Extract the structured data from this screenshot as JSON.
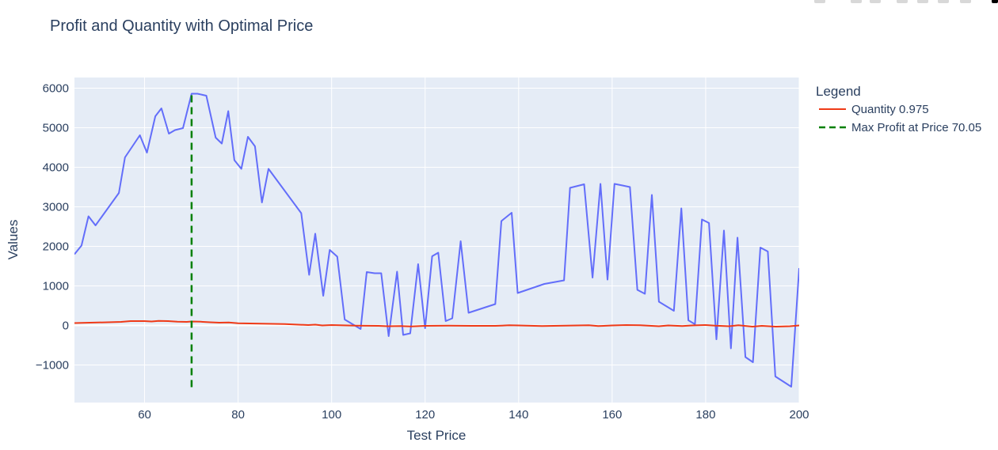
{
  "chart_data": {
    "type": "line",
    "title": "Profit and Quantity with Optimal Price",
    "xlabel": "Test Price",
    "ylabel": "Values",
    "xlim": [
      45,
      200
    ],
    "ylim": [
      -1950,
      6270
    ],
    "x_ticks": [
      60,
      80,
      100,
      120,
      140,
      160,
      180,
      200
    ],
    "y_ticks": [
      -1000,
      0,
      1000,
      2000,
      3000,
      4000,
      5000,
      6000
    ],
    "y_tick_labels": [
      "−1000",
      "0",
      "1000",
      "2000",
      "3000",
      "4000",
      "5000",
      "6000"
    ],
    "grid": true,
    "legend": {
      "title": "Legend",
      "position": "top-right, outside plot",
      "entries": [
        "Quantity 0.975",
        "Max Profit at Price 70.05"
      ]
    },
    "colors": {
      "plot_background": "#e5ecf6",
      "grid": "#ffffff",
      "profit": "#636efa",
      "quantity": "#ef3a17",
      "max_profit": "#008000",
      "text": "#2a3f5f"
    },
    "series": [
      {
        "key": "profit",
        "x": [
          45,
          46.5,
          48,
          49.5,
          54.5,
          55.8,
          59,
          60.5,
          62.3,
          63.6,
          65.2,
          66.5,
          68.2,
          70.05,
          71.3,
          73.2,
          75.2,
          76.5,
          77.9,
          79.2,
          80.7,
          82.1,
          83.6,
          85.1,
          86.5,
          93.5,
          95.2,
          96.5,
          98.2,
          99.6,
          101.2,
          102.8,
          106.2,
          107.5,
          109.2,
          110.6,
          112.2,
          114,
          115.3,
          116.8,
          118.5,
          120,
          121.5,
          122.8,
          124.4,
          125.8,
          127.6,
          129.3,
          135,
          136.3,
          138.5,
          139.8,
          145.5,
          149.7,
          151,
          154,
          155.8,
          157.5,
          159,
          160.5,
          162.2,
          163.8,
          165.4,
          167,
          168.5,
          170,
          173.2,
          174.8,
          176.3,
          177.7,
          179.2,
          180.7,
          182.3,
          183.9,
          185.4,
          186.8,
          188.5,
          190.1,
          191.7,
          193.3,
          194.9,
          198.3,
          200
        ],
        "y": [
          1800,
          2020,
          2760,
          2530,
          3350,
          4250,
          4810,
          4370,
          5290,
          5490,
          4850,
          4940,
          4990,
          5860,
          5860,
          5810,
          4750,
          4600,
          5420,
          4180,
          3960,
          4770,
          4530,
          3110,
          3960,
          2840,
          1280,
          2320,
          750,
          1910,
          1740,
          150,
          -90,
          1350,
          1320,
          1320,
          -270,
          1360,
          -240,
          -200,
          1550,
          -70,
          1750,
          1840,
          110,
          180,
          2130,
          320,
          540,
          2640,
          2850,
          820,
          1050,
          1140,
          3480,
          3570,
          1210,
          3580,
          1160,
          3580,
          3540,
          3500,
          900,
          800,
          3300,
          600,
          370,
          2960,
          130,
          30,
          2680,
          2590,
          -350,
          2400,
          -580,
          2220,
          -800,
          -930,
          1970,
          1870,
          -1290,
          -1550,
          1450
        ]
      },
      {
        "key": "quantity",
        "name": "Quantity 0.975",
        "x": [
          45,
          50,
          55,
          57,
          60,
          61.5,
          63,
          65,
          67,
          69,
          70.05,
          72,
          74,
          76,
          78,
          80,
          85,
          90,
          95,
          96.5,
          98,
          100,
          105,
          110,
          112,
          115,
          117,
          120,
          125,
          130,
          135,
          138,
          140,
          145,
          150,
          155,
          157,
          160,
          163,
          166,
          170,
          172,
          175,
          177,
          180,
          182,
          185,
          187,
          190,
          192,
          195,
          198,
          200
        ],
        "y": [
          60,
          75,
          90,
          110,
          110,
          100,
          115,
          110,
          95,
          90,
          100,
          95,
          80,
          70,
          75,
          55,
          45,
          35,
          10,
          20,
          0,
          10,
          -5,
          -10,
          -20,
          -15,
          -25,
          -10,
          -5,
          -10,
          -10,
          5,
          0,
          -15,
          -5,
          5,
          -15,
          0,
          10,
          5,
          -20,
          0,
          -15,
          0,
          10,
          -5,
          -20,
          5,
          -30,
          -10,
          -30,
          -20,
          0
        ]
      },
      {
        "key": "max_profit",
        "name": "Max Profit at Price 70.05",
        "x": [
          70.05,
          70.05
        ],
        "y": [
          -1560,
          5860
        ]
      }
    ]
  }
}
